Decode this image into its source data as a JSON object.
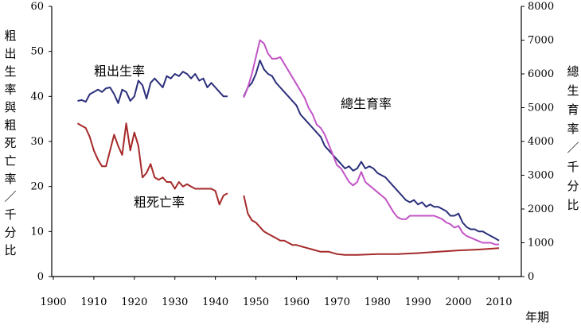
{
  "chart_data": {
    "type": "line",
    "x_ticks": [
      "1900",
      "1910",
      "1920",
      "1930",
      "1940",
      "1950",
      "1960",
      "1970",
      "1980",
      "1990",
      "2000",
      "2010"
    ],
    "x_label": "年期",
    "y_left": {
      "label": "粗出生率與粗死亡率／千分比",
      "ticks": [
        "0",
        "10",
        "20",
        "30",
        "40",
        "50",
        "60"
      ],
      "range": [
        0,
        60
      ]
    },
    "y_right": {
      "label": "總生育率／千分比",
      "ticks": [
        "0",
        "1000",
        "2000",
        "3000",
        "4000",
        "5000",
        "6000",
        "7000",
        "8000"
      ],
      "range": [
        0,
        8000
      ]
    },
    "series": [
      {
        "name": "粗出生率",
        "axis": "left",
        "color": "#2b2f7a",
        "segments": [
          [
            [
              1906,
              39
            ],
            [
              1907,
              39.2
            ],
            [
              1908,
              38.8
            ],
            [
              1909,
              40.5
            ],
            [
              1910,
              41
            ],
            [
              1911,
              41.5
            ],
            [
              1912,
              41
            ],
            [
              1913,
              41.8
            ],
            [
              1914,
              42
            ],
            [
              1915,
              40.5
            ],
            [
              1916,
              38.5
            ],
            [
              1917,
              41.5
            ],
            [
              1918,
              41
            ],
            [
              1919,
              39
            ],
            [
              1920,
              40
            ],
            [
              1921,
              43.5
            ],
            [
              1922,
              42.5
            ],
            [
              1923,
              39.5
            ],
            [
              1924,
              43
            ],
            [
              1925,
              44
            ],
            [
              1926,
              43
            ],
            [
              1927,
              42
            ],
            [
              1928,
              44.5
            ],
            [
              1929,
              44
            ],
            [
              1930,
              45
            ],
            [
              1931,
              44.5
            ],
            [
              1932,
              45.5
            ],
            [
              1933,
              45
            ],
            [
              1934,
              44
            ],
            [
              1935,
              45
            ],
            [
              1936,
              43.5
            ],
            [
              1937,
              44
            ],
            [
              1938,
              42
            ],
            [
              1939,
              43
            ],
            [
              1940,
              42
            ],
            [
              1941,
              41
            ],
            [
              1942,
              40
            ],
            [
              1943,
              40
            ]
          ],
          [
            [
              1947,
              40
            ],
            [
              1948,
              42
            ],
            [
              1949,
              43
            ],
            [
              1950,
              45
            ],
            [
              1951,
              48
            ],
            [
              1952,
              46
            ],
            [
              1953,
              45
            ],
            [
              1954,
              44.5
            ],
            [
              1955,
              43
            ],
            [
              1956,
              42
            ],
            [
              1957,
              41
            ],
            [
              1958,
              40
            ],
            [
              1959,
              39
            ],
            [
              1960,
              38
            ],
            [
              1961,
              36
            ],
            [
              1962,
              35
            ],
            [
              1963,
              34
            ],
            [
              1964,
              33
            ],
            [
              1965,
              32
            ],
            [
              1966,
              31
            ],
            [
              1967,
              29
            ],
            [
              1968,
              28
            ],
            [
              1969,
              27
            ],
            [
              1970,
              26
            ],
            [
              1971,
              25
            ],
            [
              1972,
              24
            ],
            [
              1973,
              24.5
            ],
            [
              1974,
              23.5
            ],
            [
              1975,
              24
            ],
            [
              1976,
              25.5
            ],
            [
              1977,
              24
            ],
            [
              1978,
              24.5
            ],
            [
              1979,
              24
            ],
            [
              1980,
              23
            ],
            [
              1981,
              22.5
            ],
            [
              1982,
              22
            ],
            [
              1983,
              21
            ],
            [
              1984,
              20
            ],
            [
              1985,
              19
            ],
            [
              1986,
              18
            ],
            [
              1987,
              17
            ],
            [
              1988,
              16.5
            ],
            [
              1989,
              17
            ],
            [
              1990,
              16
            ],
            [
              1991,
              16.5
            ],
            [
              1992,
              15.5
            ],
            [
              1993,
              16
            ],
            [
              1994,
              15.5
            ],
            [
              1995,
              15.5
            ],
            [
              1996,
              15
            ],
            [
              1997,
              14.5
            ],
            [
              1998,
              13.5
            ],
            [
              1999,
              13.5
            ],
            [
              2000,
              14
            ],
            [
              2001,
              12
            ],
            [
              2002,
              11
            ],
            [
              2003,
              10.5
            ],
            [
              2004,
              10.5
            ],
            [
              2005,
              10
            ],
            [
              2006,
              10
            ],
            [
              2007,
              9.5
            ],
            [
              2008,
              9
            ],
            [
              2009,
              8.5
            ],
            [
              2010,
              8
            ]
          ]
        ]
      },
      {
        "name": "粗死亡率",
        "axis": "left",
        "color": "#a52a2a",
        "segments": [
          [
            [
              1906,
              34
            ],
            [
              1907,
              33.5
            ],
            [
              1908,
              33
            ],
            [
              1909,
              31
            ],
            [
              1910,
              28
            ],
            [
              1911,
              26
            ],
            [
              1912,
              24.5
            ],
            [
              1913,
              24.5
            ],
            [
              1914,
              28
            ],
            [
              1915,
              31.5
            ],
            [
              1916,
              29
            ],
            [
              1917,
              27
            ],
            [
              1918,
              34
            ],
            [
              1919,
              28
            ],
            [
              1920,
              32
            ],
            [
              1921,
              29
            ],
            [
              1922,
              22
            ],
            [
              1923,
              23
            ],
            [
              1924,
              25
            ],
            [
              1925,
              22
            ],
            [
              1926,
              21.5
            ],
            [
              1927,
              22
            ],
            [
              1928,
              21
            ],
            [
              1929,
              21
            ],
            [
              1930,
              19.5
            ],
            [
              1931,
              21
            ],
            [
              1932,
              20
            ],
            [
              1933,
              20.5
            ],
            [
              1934,
              20
            ],
            [
              1935,
              19.5
            ],
            [
              1936,
              19.5
            ],
            [
              1937,
              19.5
            ],
            [
              1938,
              19.5
            ],
            [
              1939,
              19.5
            ],
            [
              1940,
              19
            ],
            [
              1941,
              16
            ],
            [
              1942,
              18
            ],
            [
              1943,
              18.5
            ]
          ],
          [
            [
              1947,
              18
            ],
            [
              1948,
              14
            ],
            [
              1949,
              12.5
            ],
            [
              1950,
              12
            ],
            [
              1951,
              11
            ],
            [
              1952,
              10
            ],
            [
              1953,
              9.5
            ],
            [
              1954,
              9
            ],
            [
              1955,
              8.5
            ],
            [
              1956,
              8
            ],
            [
              1957,
              8
            ],
            [
              1958,
              7.5
            ],
            [
              1959,
              7
            ],
            [
              1960,
              7
            ],
            [
              1962,
              6.5
            ],
            [
              1964,
              6
            ],
            [
              1966,
              5.5
            ],
            [
              1968,
              5.5
            ],
            [
              1970,
              5
            ],
            [
              1972,
              4.8
            ],
            [
              1975,
              4.8
            ],
            [
              1980,
              5
            ],
            [
              1985,
              5
            ],
            [
              1990,
              5.2
            ],
            [
              1995,
              5.5
            ],
            [
              2000,
              5.8
            ],
            [
              2005,
              6
            ],
            [
              2010,
              6.3
            ]
          ]
        ]
      },
      {
        "name": "總生育率",
        "axis": "right",
        "color": "#c254c6",
        "segments": [
          [
            [
              1947,
              5300
            ],
            [
              1948,
              5600
            ],
            [
              1949,
              6000
            ],
            [
              1950,
              6500
            ],
            [
              1951,
              7000
            ],
            [
              1952,
              6900
            ],
            [
              1953,
              6600
            ],
            [
              1954,
              6450
            ],
            [
              1955,
              6450
            ],
            [
              1956,
              6500
            ],
            [
              1957,
              6300
            ],
            [
              1958,
              6100
            ],
            [
              1959,
              5900
            ],
            [
              1960,
              5700
            ],
            [
              1961,
              5500
            ],
            [
              1962,
              5300
            ],
            [
              1963,
              5000
            ],
            [
              1964,
              4800
            ],
            [
              1965,
              4500
            ],
            [
              1966,
              4400
            ],
            [
              1967,
              4200
            ],
            [
              1968,
              3900
            ],
            [
              1969,
              3600
            ],
            [
              1970,
              3300
            ],
            [
              1971,
              3200
            ],
            [
              1972,
              3000
            ],
            [
              1973,
              2800
            ],
            [
              1974,
              2700
            ],
            [
              1975,
              2800
            ],
            [
              1976,
              3100
            ],
            [
              1977,
              2800
            ],
            [
              1978,
              2700
            ],
            [
              1979,
              2600
            ],
            [
              1980,
              2500
            ],
            [
              1981,
              2400
            ],
            [
              1982,
              2300
            ],
            [
              1983,
              2100
            ],
            [
              1984,
              1900
            ],
            [
              1985,
              1750
            ],
            [
              1986,
              1700
            ],
            [
              1987,
              1700
            ],
            [
              1988,
              1800
            ],
            [
              1989,
              1800
            ],
            [
              1990,
              1800
            ],
            [
              1991,
              1800
            ],
            [
              1992,
              1800
            ],
            [
              1993,
              1800
            ],
            [
              1994,
              1800
            ],
            [
              1995,
              1750
            ],
            [
              1996,
              1700
            ],
            [
              1997,
              1600
            ],
            [
              1998,
              1550
            ],
            [
              1999,
              1450
            ],
            [
              2000,
              1500
            ],
            [
              2001,
              1300
            ],
            [
              2002,
              1200
            ],
            [
              2003,
              1150
            ],
            [
              2004,
              1100
            ],
            [
              2005,
              1050
            ],
            [
              2006,
              1000
            ],
            [
              2007,
              1000
            ],
            [
              2008,
              1000
            ],
            [
              2009,
              950
            ],
            [
              2010,
              950
            ]
          ]
        ]
      }
    ],
    "annotations": [
      "粗出生率",
      "粗死亡率",
      "總生育率"
    ],
    "grid": false,
    "legend": "none"
  }
}
